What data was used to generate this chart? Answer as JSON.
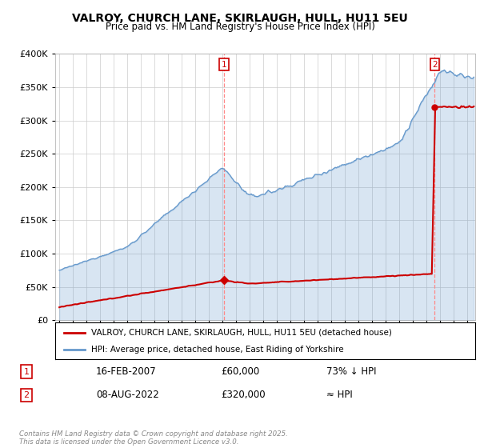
{
  "title": "VALROY, CHURCH LANE, SKIRLAUGH, HULL, HU11 5EU",
  "subtitle": "Price paid vs. HM Land Registry's House Price Index (HPI)",
  "legend_line1": "VALROY, CHURCH LANE, SKIRLAUGH, HULL, HU11 5EU (detached house)",
  "legend_line2": "HPI: Average price, detached house, East Riding of Yorkshire",
  "sale1_date": "16-FEB-2007",
  "sale1_price": 60000,
  "sale1_label": "73% ↓ HPI",
  "sale2_date": "08-AUG-2022",
  "sale2_price": 320000,
  "sale2_label": "≈ HPI",
  "footer": "Contains HM Land Registry data © Crown copyright and database right 2025.\nThis data is licensed under the Open Government Licence v3.0.",
  "red_color": "#cc0000",
  "blue_color": "#6699cc",
  "fill_color": "#ddeeff",
  "ylim_max": 400000,
  "ylim_min": 0,
  "xmin": 1995,
  "xmax": 2025
}
